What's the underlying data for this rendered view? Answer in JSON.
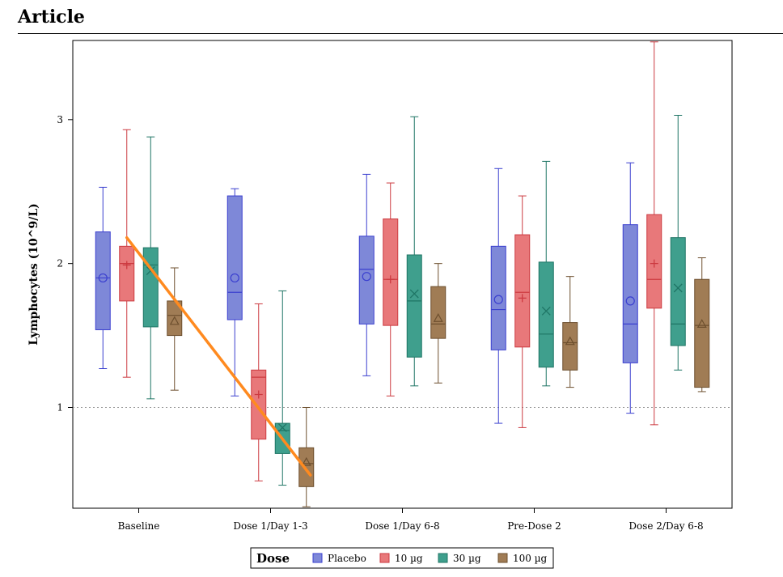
{
  "header": {
    "title": "Article"
  },
  "colors": {
    "placebo": {
      "fill": "#7e88d8",
      "stroke": "#3a3fcf"
    },
    "10ug": {
      "fill": "#e8787a",
      "stroke": "#cc3a40"
    },
    "30ug": {
      "fill": "#3f9f8d",
      "stroke": "#1f7565"
    },
    "100ug": {
      "fill": "#a07c55",
      "stroke": "#6d4f2e"
    },
    "annotation_line": "#ff8a1f"
  },
  "chart_data": {
    "type": "box",
    "title": "",
    "xlabel": "",
    "ylabel": "Lymphocytes (10^9/L)",
    "ylim": [
      0.3,
      3.55
    ],
    "yticks": [
      1,
      2,
      3
    ],
    "reference_line": {
      "y": 1,
      "style": "dotted"
    },
    "grid": false,
    "legend": {
      "title": "Dose",
      "placement": "bottom"
    },
    "categories": [
      "Baseline",
      "Dose 1/Day 1-3",
      "Dose 1/Day 6-8",
      "Pre-Dose 2",
      "Dose 2/Day 6-8"
    ],
    "series": [
      {
        "name": "Placebo",
        "color_key": "placebo",
        "marker": "circle",
        "boxes": [
          {
            "min": 1.27,
            "q1": 1.54,
            "median": 1.9,
            "q3": 2.22,
            "max": 2.53,
            "mean": 1.9
          },
          {
            "min": 1.08,
            "q1": 1.61,
            "median": 1.8,
            "q3": 2.47,
            "max": 2.52,
            "mean": 1.9
          },
          {
            "min": 1.22,
            "q1": 1.58,
            "median": 1.96,
            "q3": 2.19,
            "max": 2.62,
            "mean": 1.91
          },
          {
            "min": 0.89,
            "q1": 1.4,
            "median": 1.68,
            "q3": 2.12,
            "max": 2.66,
            "mean": 1.75
          },
          {
            "min": 0.96,
            "q1": 1.31,
            "median": 1.58,
            "q3": 2.27,
            "max": 2.7,
            "mean": 1.74
          }
        ]
      },
      {
        "name": "10 µg",
        "color_key": "10ug",
        "marker": "plus",
        "boxes": [
          {
            "min": 1.21,
            "q1": 1.74,
            "median": 2.0,
            "q3": 2.12,
            "max": 2.93,
            "mean": 1.99
          },
          {
            "min": 0.49,
            "q1": 0.78,
            "median": 1.21,
            "q3": 1.26,
            "max": 1.72,
            "mean": 1.09
          },
          {
            "min": 1.08,
            "q1": 1.57,
            "median": 1.89,
            "q3": 2.31,
            "max": 2.56,
            "mean": 1.89
          },
          {
            "min": 0.86,
            "q1": 1.42,
            "median": 1.8,
            "q3": 2.2,
            "max": 2.47,
            "mean": 1.76
          },
          {
            "min": 0.88,
            "q1": 1.69,
            "median": 1.89,
            "q3": 2.34,
            "max": 3.54,
            "mean": 2.0
          }
        ]
      },
      {
        "name": "30 µg",
        "color_key": "30ug",
        "marker": "x",
        "boxes": [
          {
            "min": 1.06,
            "q1": 1.56,
            "median": 1.99,
            "q3": 2.11,
            "max": 2.88,
            "mean": 1.95
          },
          {
            "min": 0.46,
            "q1": 0.68,
            "median": 0.84,
            "q3": 0.89,
            "max": 1.81,
            "mean": 0.86
          },
          {
            "min": 1.15,
            "q1": 1.35,
            "median": 1.74,
            "q3": 2.06,
            "max": 3.02,
            "mean": 1.79
          },
          {
            "min": 1.15,
            "q1": 1.28,
            "median": 1.51,
            "q3": 2.01,
            "max": 2.71,
            "mean": 1.67
          },
          {
            "min": 1.26,
            "q1": 1.43,
            "median": 1.58,
            "q3": 2.18,
            "max": 3.03,
            "mean": 1.83
          }
        ]
      },
      {
        "name": "100 µg",
        "color_key": "100ug",
        "marker": "triangle",
        "boxes": [
          {
            "min": 1.12,
            "q1": 1.5,
            "median": 1.64,
            "q3": 1.74,
            "max": 1.97,
            "mean": 1.6
          },
          {
            "min": 0.31,
            "q1": 0.45,
            "median": 0.61,
            "q3": 0.72,
            "max": 1.0,
            "mean": 0.62
          },
          {
            "min": 1.17,
            "q1": 1.48,
            "median": 1.58,
            "q3": 1.84,
            "max": 2.0,
            "mean": 1.62
          },
          {
            "min": 1.14,
            "q1": 1.26,
            "median": 1.45,
            "q3": 1.59,
            "max": 1.91,
            "mean": 1.46
          },
          {
            "min": 1.11,
            "q1": 1.14,
            "median": 1.57,
            "q3": 1.89,
            "max": 2.04,
            "mean": 1.58
          }
        ]
      }
    ],
    "annotation": {
      "type": "line",
      "from": {
        "category": "Baseline",
        "series": "10 µg",
        "y": 2.18
      },
      "to": {
        "category": "Dose 1/Day 1-3",
        "series": "100 µg",
        "y": 0.53
      }
    }
  }
}
